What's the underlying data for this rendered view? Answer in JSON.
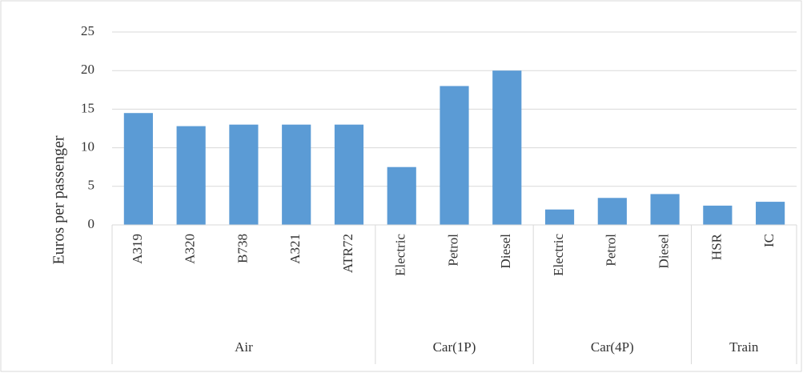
{
  "chart_data": {
    "type": "bar",
    "y_label": "Euros per passenger",
    "groups": [
      {
        "name": "Air",
        "categories": [
          "A319",
          "A320",
          "B738",
          "A321",
          "ATR72"
        ],
        "values": [
          14.5,
          12.8,
          13,
          13,
          13
        ]
      },
      {
        "name": "Car(1P)",
        "categories": [
          "Electric",
          "Petrol",
          "Diesel"
        ],
        "values": [
          7.5,
          18,
          20
        ]
      },
      {
        "name": "Car(4P)",
        "categories": [
          "Electric",
          "Petrol",
          "Diesel"
        ],
        "values": [
          2,
          3.5,
          4
        ]
      },
      {
        "name": "Train",
        "categories": [
          "HSR",
          "IC"
        ],
        "values": [
          2.5,
          3
        ]
      }
    ],
    "color": "#5b9bd5",
    "ylim": [
      0,
      25
    ],
    "yticks": [
      0,
      5,
      10,
      15,
      20,
      25
    ],
    "grid": true
  }
}
